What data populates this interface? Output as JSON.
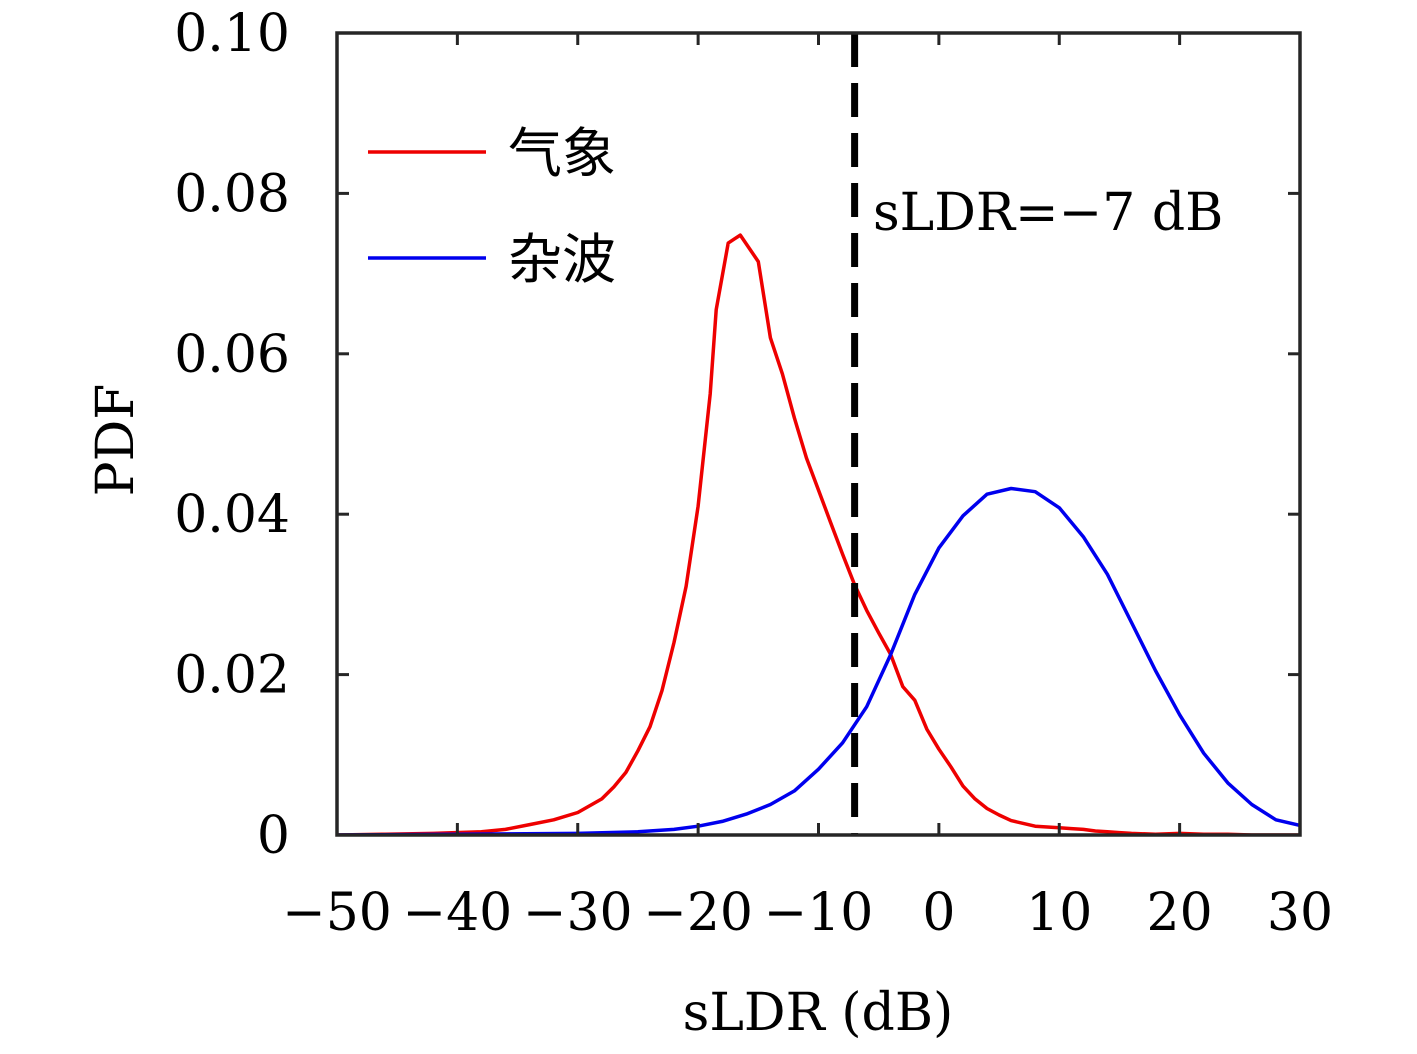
{
  "chart_data": {
    "type": "line",
    "xlabel": "sLDR (dB)",
    "ylabel": "PDF",
    "xlim": [
      -50,
      30
    ],
    "ylim": [
      0,
      0.1
    ],
    "x_ticks": [
      -50,
      -40,
      -30,
      -20,
      -10,
      0,
      10,
      20,
      30
    ],
    "x_tick_labels": [
      "−50",
      "−40",
      "−30",
      "−20",
      "−10",
      "0",
      "10",
      "20",
      "30"
    ],
    "y_ticks": [
      0,
      0.02,
      0.04,
      0.06,
      0.08,
      0.1
    ],
    "y_tick_labels": [
      "0",
      "0.02",
      "0.04",
      "0.06",
      "0.08",
      "0.10"
    ],
    "grid": false,
    "legend_position": "top-left",
    "series": [
      {
        "name": "气象",
        "color": "#ee0000",
        "x": [
          -50,
          -46,
          -42,
          -38,
          -36,
          -34,
          -32,
          -30,
          -28,
          -27,
          -26,
          -25,
          -24,
          -23,
          -22,
          -21,
          -20,
          -19,
          -18.5,
          -17.5,
          -17,
          -16.5,
          -15,
          -14,
          -13,
          -12,
          -11,
          -10,
          -9,
          -8,
          -7,
          -6,
          -5,
          -4,
          -3,
          -2,
          -1,
          0,
          1,
          2,
          3,
          4,
          5,
          6,
          8,
          10,
          11,
          12,
          13,
          14,
          15,
          16,
          18,
          20,
          22,
          24,
          26,
          30
        ],
        "y": [
          0,
          0.0001,
          0.0002,
          0.0004,
          0.0007,
          0.0013,
          0.0019,
          0.0028,
          0.0045,
          0.006,
          0.0078,
          0.0105,
          0.0135,
          0.018,
          0.024,
          0.031,
          0.041,
          0.055,
          0.0655,
          0.0738,
          0.0743,
          0.0748,
          0.0715,
          0.062,
          0.0575,
          0.052,
          0.047,
          0.043,
          0.039,
          0.035,
          0.0312,
          0.028,
          0.0252,
          0.0225,
          0.0185,
          0.0168,
          0.0132,
          0.0107,
          0.0085,
          0.0061,
          0.0045,
          0.0033,
          0.0025,
          0.0018,
          0.0011,
          0.0009,
          0.0008,
          0.0007,
          0.0005,
          0.0004,
          0.0003,
          0.0002,
          0.0001,
          0.0002,
          0.0001,
          0.0001,
          0,
          0
        ]
      },
      {
        "name": "杂波",
        "color": "#0000ee",
        "x": [
          -50,
          -40,
          -30,
          -25,
          -22,
          -20,
          -18,
          -16,
          -14,
          -12,
          -10,
          -8,
          -6,
          -4,
          -2,
          0,
          2,
          4,
          6,
          8,
          10,
          12,
          14,
          16,
          18,
          20,
          22,
          24,
          26,
          28,
          30
        ],
        "y": [
          0,
          0.0001,
          0.0002,
          0.0004,
          0.0007,
          0.0011,
          0.0017,
          0.0026,
          0.0038,
          0.0055,
          0.0082,
          0.0115,
          0.016,
          0.0225,
          0.03,
          0.0358,
          0.0398,
          0.0425,
          0.0432,
          0.0428,
          0.0408,
          0.0372,
          0.0325,
          0.0265,
          0.0205,
          0.015,
          0.0102,
          0.0065,
          0.0038,
          0.0019,
          0.0012
        ]
      }
    ],
    "threshold": {
      "x": -7,
      "label": "sLDR=−7 dB",
      "color": "#000000",
      "style": "dashed"
    }
  }
}
